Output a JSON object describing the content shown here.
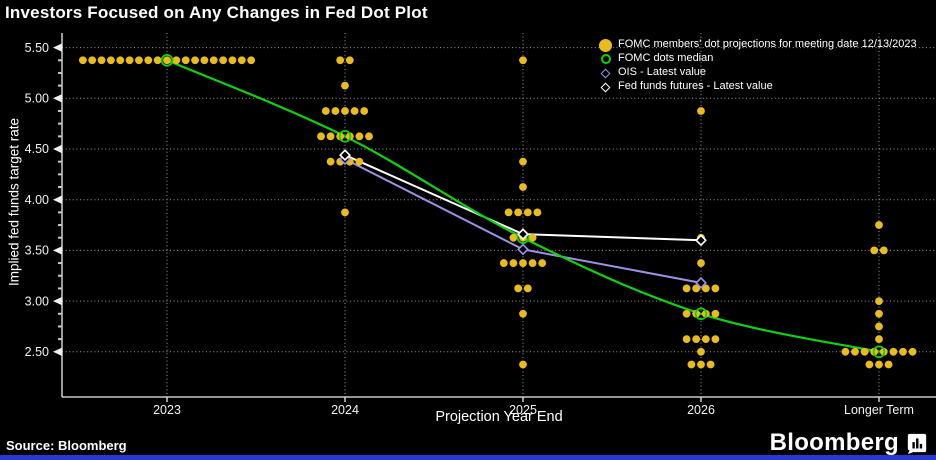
{
  "header": {
    "title": "Investors Focused on Any Changes in Fed Dot Plot"
  },
  "footer": {
    "source": "Source: Bloomberg",
    "logo_text": "Bloomberg"
  },
  "colors": {
    "background": "#000000",
    "dots": "#e9bc1b",
    "median_green": "#0fd20f",
    "ois_purple": "#9e90e6",
    "futures_white": "#ffffff",
    "gridline": "#aeaeae",
    "accent_bar": "#2838d0"
  },
  "legend": {
    "items": [
      {
        "label": "FOMC members' dot projections for meeting date 12/13/2023",
        "shape": "filled-circle",
        "color_key": "dots",
        "name": "legend-item-fomc-dots"
      },
      {
        "label": "FOMC dots median",
        "shape": "open-circle",
        "color_key": "median_green",
        "name": "legend-item-fomc-median"
      },
      {
        "label": "OIS - Latest value",
        "shape": "open-diamond",
        "color_key": "ois_purple",
        "name": "legend-item-ois"
      },
      {
        "label": "Fed funds futures - Latest value",
        "shape": "open-diamond",
        "color_key": "futures_white",
        "name": "legend-item-fed-funds-futures"
      }
    ]
  },
  "chart_data": {
    "type": "scatter",
    "title": "Investors Focused on Any Changes in Fed Dot Plot",
    "xlabel": "Projection Year End",
    "ylabel": "Implied fed funds target rate",
    "categories": [
      "2023",
      "2024",
      "2025",
      "2026",
      "Longer Term"
    ],
    "yticks": [
      2.5,
      3.0,
      3.5,
      4.0,
      4.5,
      5.0,
      5.5
    ],
    "ylim": [
      2.25,
      5.62
    ],
    "grid": "dotted-both-axes",
    "legend_position": "top-right-inside",
    "dot_columns": [
      {
        "category": "2023",
        "rows": [
          {
            "value": 5.375,
            "count": 19
          }
        ]
      },
      {
        "category": "2024",
        "rows": [
          {
            "value": 5.375,
            "count": 2
          },
          {
            "value": 5.125,
            "count": 1
          },
          {
            "value": 4.875,
            "count": 5
          },
          {
            "value": 4.625,
            "count": 6
          },
          {
            "value": 4.375,
            "count": 4
          },
          {
            "value": 3.875,
            "count": 1
          }
        ]
      },
      {
        "category": "2025",
        "rows": [
          {
            "value": 5.375,
            "count": 1
          },
          {
            "value": 4.375,
            "count": 1
          },
          {
            "value": 4.125,
            "count": 1
          },
          {
            "value": 3.875,
            "count": 4
          },
          {
            "value": 3.625,
            "count": 3
          },
          {
            "value": 3.375,
            "count": 5
          },
          {
            "value": 3.125,
            "count": 2
          },
          {
            "value": 2.875,
            "count": 1
          },
          {
            "value": 2.375,
            "count": 1
          }
        ]
      },
      {
        "category": "2026",
        "rows": [
          {
            "value": 4.875,
            "count": 1
          },
          {
            "value": 3.625,
            "count": 1
          },
          {
            "value": 3.375,
            "count": 1
          },
          {
            "value": 3.125,
            "count": 4
          },
          {
            "value": 2.875,
            "count": 4
          },
          {
            "value": 2.625,
            "count": 4
          },
          {
            "value": 2.5,
            "count": 1
          },
          {
            "value": 2.375,
            "count": 3
          }
        ]
      },
      {
        "category": "Longer Term",
        "rows": [
          {
            "value": 3.75,
            "count": 1
          },
          {
            "value": 3.5,
            "count": 2
          },
          {
            "value": 3.0,
            "count": 1
          },
          {
            "value": 2.875,
            "count": 1
          },
          {
            "value": 2.75,
            "count": 1
          },
          {
            "value": 2.625,
            "count": 1
          },
          {
            "value": 2.5,
            "count": 8
          },
          {
            "value": 2.375,
            "count": 3
          }
        ]
      }
    ],
    "series": [
      {
        "name": "FOMC dots median",
        "color_key": "median_green",
        "marker": "circle",
        "smooth": true,
        "width": 2.2,
        "points": [
          [
            "2023",
            5.375
          ],
          [
            "2024",
            4.625
          ],
          [
            "2025",
            3.625
          ],
          [
            "2026",
            2.875
          ],
          [
            "Longer Term",
            2.5
          ]
        ]
      },
      {
        "name": "OIS - Latest value",
        "color_key": "ois_purple",
        "marker": "diamond",
        "smooth": false,
        "width": 2,
        "points": [
          [
            "2024",
            4.4
          ],
          [
            "2025",
            3.51
          ],
          [
            "2026",
            3.18
          ]
        ]
      },
      {
        "name": "Fed funds futures - Latest value",
        "color_key": "futures_white",
        "marker": "diamond",
        "smooth": false,
        "width": 2,
        "points": [
          [
            "2024",
            4.44
          ],
          [
            "2025",
            3.66
          ],
          [
            "2026",
            3.6
          ]
        ]
      }
    ]
  }
}
